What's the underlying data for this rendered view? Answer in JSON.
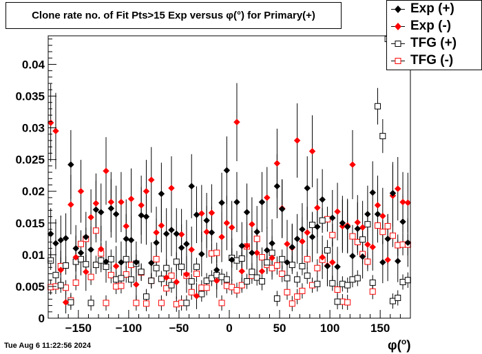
{
  "title": "Clone rate no. of Fit Pts>15 Exp versus φ(°) for Primary(+)",
  "timestamp": "Tue Aug  6 11:22:56 2024",
  "xlabel": {
    "symbol": "φ",
    "unit": "o",
    "open": "(",
    "close": ")"
  },
  "legend": [
    {
      "name": "Exp (+)",
      "marker": "filled-diamond",
      "color": "#000000"
    },
    {
      "name": "Exp (-)",
      "marker": "filled-diamond",
      "color": "#ff0000"
    },
    {
      "name": "TFG (+)",
      "marker": "open-square",
      "color": "#000000"
    },
    {
      "name": "TFG (-)",
      "marker": "open-square",
      "color": "#ff0000"
    }
  ],
  "chart_data": {
    "type": "scatter",
    "title": "Clone rate no. of Fit Pts>15 Exp versus φ(°) for Primary(+)",
    "xlabel": "φ(°)",
    "ylabel": "",
    "xlim": [
      -180,
      180
    ],
    "ylim": [
      0,
      0.0445
    ],
    "x_ticks": [
      -150,
      -100,
      -50,
      0,
      50,
      100,
      150
    ],
    "x_tick_labels": [
      "−150",
      "−100",
      "−50",
      "0",
      "50",
      "100",
      "150"
    ],
    "y_ticks": [
      0,
      0.005,
      0.01,
      0.015,
      0.02,
      0.025,
      0.03,
      0.035,
      0.04
    ],
    "y_tick_labels": [
      "0",
      "0.005",
      "0.01",
      "0.015",
      "0.02",
      "0.025",
      "0.03",
      "0.035",
      "0.04"
    ],
    "grid": false,
    "legend_position": "top-right",
    "series": [
      {
        "name": "Exp (+)",
        "x": [
          -177.5,
          -172.5,
          -167.5,
          -162.5,
          -157.5,
          -152.5,
          -147.5,
          -142.5,
          -137.5,
          -132.5,
          -127.5,
          -122.5,
          -117.5,
          -112.5,
          -107.5,
          -102.5,
          -97.5,
          -92.5,
          -87.5,
          -82.5,
          -77.5,
          -72.5,
          -67.5,
          -62.5,
          -57.5,
          -52.5,
          -47.5,
          -42.5,
          -37.5,
          -32.5,
          -27.5,
          -22.5,
          -17.5,
          -12.5,
          -7.5,
          -2.5,
          2.5,
          7.5,
          12.5,
          17.5,
          22.5,
          27.5,
          32.5,
          37.5,
          42.5,
          47.5,
          52.5,
          57.5,
          62.5,
          67.5,
          72.5,
          77.5,
          82.5,
          87.5,
          92.5,
          97.5,
          102.5,
          107.5,
          112.5,
          117.5,
          122.5,
          127.5,
          132.5,
          137.5,
          142.5,
          147.5,
          152.5,
          157.5,
          162.5,
          167.5,
          172.5,
          177.5
        ],
        "y": [
          0.0133,
          0.0118,
          0.0123,
          0.0126,
          0.0242,
          0.011,
          0.0103,
          0.0128,
          0.0108,
          0.0171,
          0.0167,
          0.0089,
          0.0173,
          0.0164,
          0.0088,
          0.0125,
          0.0123,
          0.0088,
          0.0162,
          0.016,
          0.0087,
          0.0119,
          0.0196,
          0.0133,
          0.0139,
          0.0133,
          0.0111,
          0.0117,
          0.0208,
          0.0163,
          0.0101,
          0.0154,
          0.0135,
          0.0076,
          0.0182,
          0.0233,
          0.0092,
          0.0183,
          0.0114,
          0.0167,
          0.0103,
          0.0136,
          0.0183,
          0.0107,
          0.0118,
          0.0208,
          0.0172,
          0.0088,
          0.0112,
          0.0125,
          0.014,
          0.0205,
          0.0128,
          0.0144,
          0.0187,
          0.0082,
          0.0158,
          0.0081,
          0.015,
          0.0144,
          0.0098,
          0.0141,
          0.0097,
          0.0164,
          0.0198,
          0.0164,
          0.0088,
          0.0125,
          0.0197,
          0.009,
          0.0152,
          0.0119
        ]
      },
      {
        "name": "Exp (-)",
        "x": [
          -177.5,
          -172.5,
          -167.5,
          -162.5,
          -157.5,
          -152.5,
          -147.5,
          -142.5,
          -137.5,
          -132.5,
          -127.5,
          -122.5,
          -117.5,
          -112.5,
          -107.5,
          -102.5,
          -97.5,
          -92.5,
          -87.5,
          -82.5,
          -77.5,
          -72.5,
          -67.5,
          -62.5,
          -57.5,
          -52.5,
          -47.5,
          -42.5,
          -37.5,
          -32.5,
          -27.5,
          -22.5,
          -17.5,
          -12.5,
          -7.5,
          -2.5,
          2.5,
          7.5,
          12.5,
          17.5,
          22.5,
          27.5,
          32.5,
          37.5,
          42.5,
          47.5,
          52.5,
          57.5,
          62.5,
          67.5,
          72.5,
          77.5,
          82.5,
          87.5,
          92.5,
          97.5,
          102.5,
          107.5,
          112.5,
          117.5,
          122.5,
          127.5,
          132.5,
          137.5,
          142.5,
          147.5,
          152.5,
          157.5,
          162.5,
          167.5,
          172.5,
          177.5
        ],
        "y": [
          0.0308,
          0.0295,
          0.0076,
          0.0025,
          0.0179,
          0.0096,
          0.02,
          0.0073,
          0.0159,
          0.0181,
          0.0109,
          0.0232,
          0.0183,
          0.0082,
          0.0183,
          0.0145,
          0.0188,
          0.0053,
          0.0178,
          0.02,
          0.0218,
          0.0135,
          0.0146,
          0.0064,
          0.0205,
          0.0057,
          0.0132,
          0.0069,
          0.0108,
          0.0035,
          0.0165,
          0.0136,
          0.0166,
          0.0059,
          0.0128,
          0.015,
          0.0143,
          0.0309,
          0.0074,
          0.0114,
          0.0148,
          0.0103,
          0.0074,
          0.019,
          0.0095,
          0.0244,
          0.0173,
          0.0117,
          0.0111,
          0.028,
          0.0121,
          0.0135,
          0.0263,
          0.0174,
          0.0096,
          0.0083,
          0.0088,
          0.0168,
          0.0145,
          0.0146,
          0.0242,
          0.0151,
          0.0143,
          0.0116,
          0.0112,
          0.0178,
          0.0161,
          0.0092,
          0.0193,
          0.0204,
          0.0183,
          0.0182
        ]
      },
      {
        "name": "TFG (+)",
        "x": [
          -177.5,
          -172.5,
          -167.5,
          -162.5,
          -157.5,
          -152.5,
          -147.5,
          -142.5,
          -137.5,
          -132.5,
          -127.5,
          -122.5,
          -117.5,
          -112.5,
          -107.5,
          -102.5,
          -97.5,
          -92.5,
          -87.5,
          -82.5,
          -77.5,
          -72.5,
          -67.5,
          -62.5,
          -57.5,
          -52.5,
          -47.5,
          -42.5,
          -37.5,
          -32.5,
          -27.5,
          -22.5,
          -17.5,
          -12.5,
          -7.5,
          -2.5,
          2.5,
          7.5,
          12.5,
          17.5,
          22.5,
          27.5,
          32.5,
          37.5,
          42.5,
          47.5,
          52.5,
          57.5,
          62.5,
          67.5,
          72.5,
          77.5,
          82.5,
          87.5,
          92.5,
          97.5,
          102.5,
          107.5,
          112.5,
          117.5,
          122.5,
          127.5,
          132.5,
          137.5,
          142.5,
          147.5,
          152.5,
          157.5,
          162.5,
          167.5,
          172.5,
          177.5
        ],
        "y": [
          0.0091,
          0.0068,
          0.0052,
          0.0083,
          0.0025,
          0.0089,
          0.0093,
          0.0085,
          0.0024,
          0.0084,
          0.0091,
          0.0081,
          0.0093,
          0.0061,
          0.0063,
          0.0093,
          0.0061,
          0.0086,
          0.0073,
          0.0034,
          0.0059,
          0.0079,
          0.0062,
          0.0079,
          0.0052,
          0.0089,
          0.0081,
          0.0024,
          0.0058,
          0.0081,
          0.0038,
          0.0059,
          0.0063,
          0.0068,
          0.0065,
          0.0061,
          0.0095,
          0.0091,
          0.0094,
          0.0058,
          0.0073,
          0.0064,
          0.0058,
          0.0088,
          0.0103,
          0.0031,
          0.0093,
          0.0063,
          0.0084,
          0.0061,
          0.0082,
          0.0067,
          0.0147,
          0.0054,
          0.0154,
          0.0107,
          0.0055,
          0.0026,
          0.0054,
          0.0052,
          0.0061,
          0.0063,
          0.0124,
          0.0148,
          0.0056,
          0.0334,
          0.0287,
          0.044,
          0.0027,
          0.0032,
          0.0057,
          0.006
        ]
      },
      {
        "name": "TFG (-)",
        "x": [
          -177.5,
          -172.5,
          -167.5,
          -162.5,
          -157.5,
          -152.5,
          -147.5,
          -142.5,
          -137.5,
          -132.5,
          -127.5,
          -122.5,
          -117.5,
          -112.5,
          -107.5,
          -102.5,
          -97.5,
          -92.5,
          -87.5,
          -82.5,
          -77.5,
          -72.5,
          -67.5,
          -62.5,
          -57.5,
          -52.5,
          -47.5,
          -42.5,
          -37.5,
          -32.5,
          -27.5,
          -22.5,
          -17.5,
          -12.5,
          -7.5,
          -2.5,
          2.5,
          7.5,
          12.5,
          17.5,
          22.5,
          27.5,
          32.5,
          37.5,
          42.5,
          47.5,
          52.5,
          57.5,
          62.5,
          67.5,
          72.5,
          77.5,
          82.5,
          87.5,
          92.5,
          97.5,
          102.5,
          107.5,
          112.5,
          117.5,
          122.5,
          127.5,
          132.5,
          137.5,
          142.5,
          147.5,
          152.5,
          157.5,
          162.5,
          167.5,
          172.5,
          177.5
        ],
        "y": [
          0.0049,
          0.005,
          0.0082,
          0.0048,
          0.0028,
          0.0056,
          0.0117,
          0.0125,
          0.0065,
          0.0138,
          0.0102,
          0.0024,
          0.0068,
          0.005,
          0.0051,
          0.0069,
          0.0084,
          0.0024,
          0.0072,
          0.0023,
          0.0059,
          0.0093,
          0.0024,
          0.0047,
          0.0067,
          0.0022,
          0.0024,
          0.0067,
          0.0041,
          0.007,
          0.0048,
          0.0048,
          0.0102,
          0.0103,
          0.0024,
          0.0051,
          0.0049,
          0.0044,
          0.0052,
          0.0113,
          0.0067,
          0.0125,
          0.0096,
          0.0084,
          0.0079,
          0.0083,
          0.007,
          0.0041,
          0.0023,
          0.0034,
          0.0043,
          0.0093,
          0.0052,
          0.0079,
          0.0092,
          0.0156,
          0.0131,
          0.0045,
          0.0026,
          0.0025,
          0.0129,
          0.012,
          0.0101,
          0.0089,
          0.0042,
          0.0146,
          0.0136,
          0.0145,
          0.013,
          0.0115,
          0.0116,
          0.0116
        ]
      }
    ]
  }
}
